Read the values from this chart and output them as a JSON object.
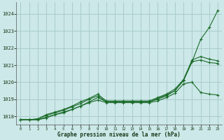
{
  "title": "Graphe pression niveau de la mer (hPa)",
  "xlim": [
    -0.5,
    23.5
  ],
  "ylim": [
    1017.5,
    1024.7
  ],
  "yticks": [
    1018,
    1019,
    1020,
    1021,
    1022,
    1023,
    1024
  ],
  "xticks": [
    0,
    1,
    2,
    3,
    4,
    5,
    6,
    7,
    8,
    9,
    10,
    11,
    12,
    13,
    14,
    15,
    16,
    17,
    18,
    19,
    20,
    21,
    22,
    23
  ],
  "background_color": "#cce8e8",
  "grid_color": "#aacccc",
  "line_color": "#1a6b2a",
  "series": [
    [
      1017.8,
      1017.8,
      1017.8,
      1017.9,
      1018.1,
      1018.2,
      1018.4,
      1018.6,
      1018.85,
      1019.1,
      1018.85,
      1018.85,
      1018.85,
      1018.85,
      1018.85,
      1018.85,
      1019.0,
      1019.2,
      1019.5,
      1020.1,
      1021.2,
      1022.5,
      1023.2,
      1024.2
    ],
    [
      1017.8,
      1017.8,
      1017.8,
      1017.95,
      1018.1,
      1018.25,
      1018.4,
      1018.6,
      1018.8,
      1018.95,
      1018.8,
      1018.8,
      1018.8,
      1018.8,
      1018.8,
      1018.8,
      1018.9,
      1019.1,
      1019.35,
      1019.9,
      1020.0,
      1019.4,
      1019.3,
      1019.25
    ],
    [
      1017.8,
      1017.8,
      1017.85,
      1018.05,
      1018.2,
      1018.35,
      1018.55,
      1018.75,
      1019.0,
      1019.2,
      1018.85,
      1018.85,
      1018.85,
      1018.85,
      1018.85,
      1018.85,
      1019.05,
      1019.25,
      1019.5,
      1020.1,
      1021.2,
      1021.3,
      1021.15,
      1021.1
    ],
    [
      1017.8,
      1017.8,
      1017.85,
      1018.1,
      1018.25,
      1018.4,
      1018.6,
      1018.85,
      1019.05,
      1019.3,
      1018.9,
      1018.9,
      1018.9,
      1018.9,
      1018.9,
      1018.9,
      1019.1,
      1019.3,
      1019.6,
      1020.15,
      1021.3,
      1021.5,
      1021.35,
      1021.25
    ]
  ],
  "figsize": [
    3.2,
    2.0
  ],
  "dpi": 100
}
